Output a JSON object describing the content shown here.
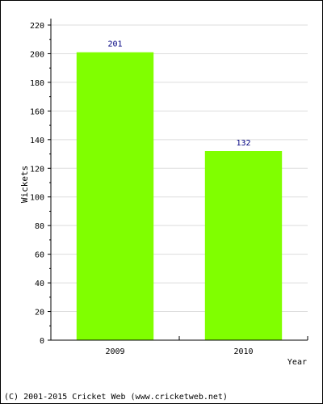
{
  "chart_data": {
    "type": "bar",
    "categories": [
      "2009",
      "2010"
    ],
    "values": [
      201,
      132
    ],
    "data_labels": [
      "201",
      "132"
    ],
    "xlabel": "Year",
    "ylabel": "Wickets",
    "ylim": [
      0,
      220
    ],
    "yticks": [
      0,
      20,
      40,
      60,
      80,
      100,
      120,
      140,
      160,
      180,
      200,
      220
    ],
    "grid": true,
    "bar_color": "#80ff00",
    "label_color": "#000080"
  },
  "footer": {
    "copyright": "(C) 2001-2015 Cricket Web (www.cricketweb.net)"
  }
}
